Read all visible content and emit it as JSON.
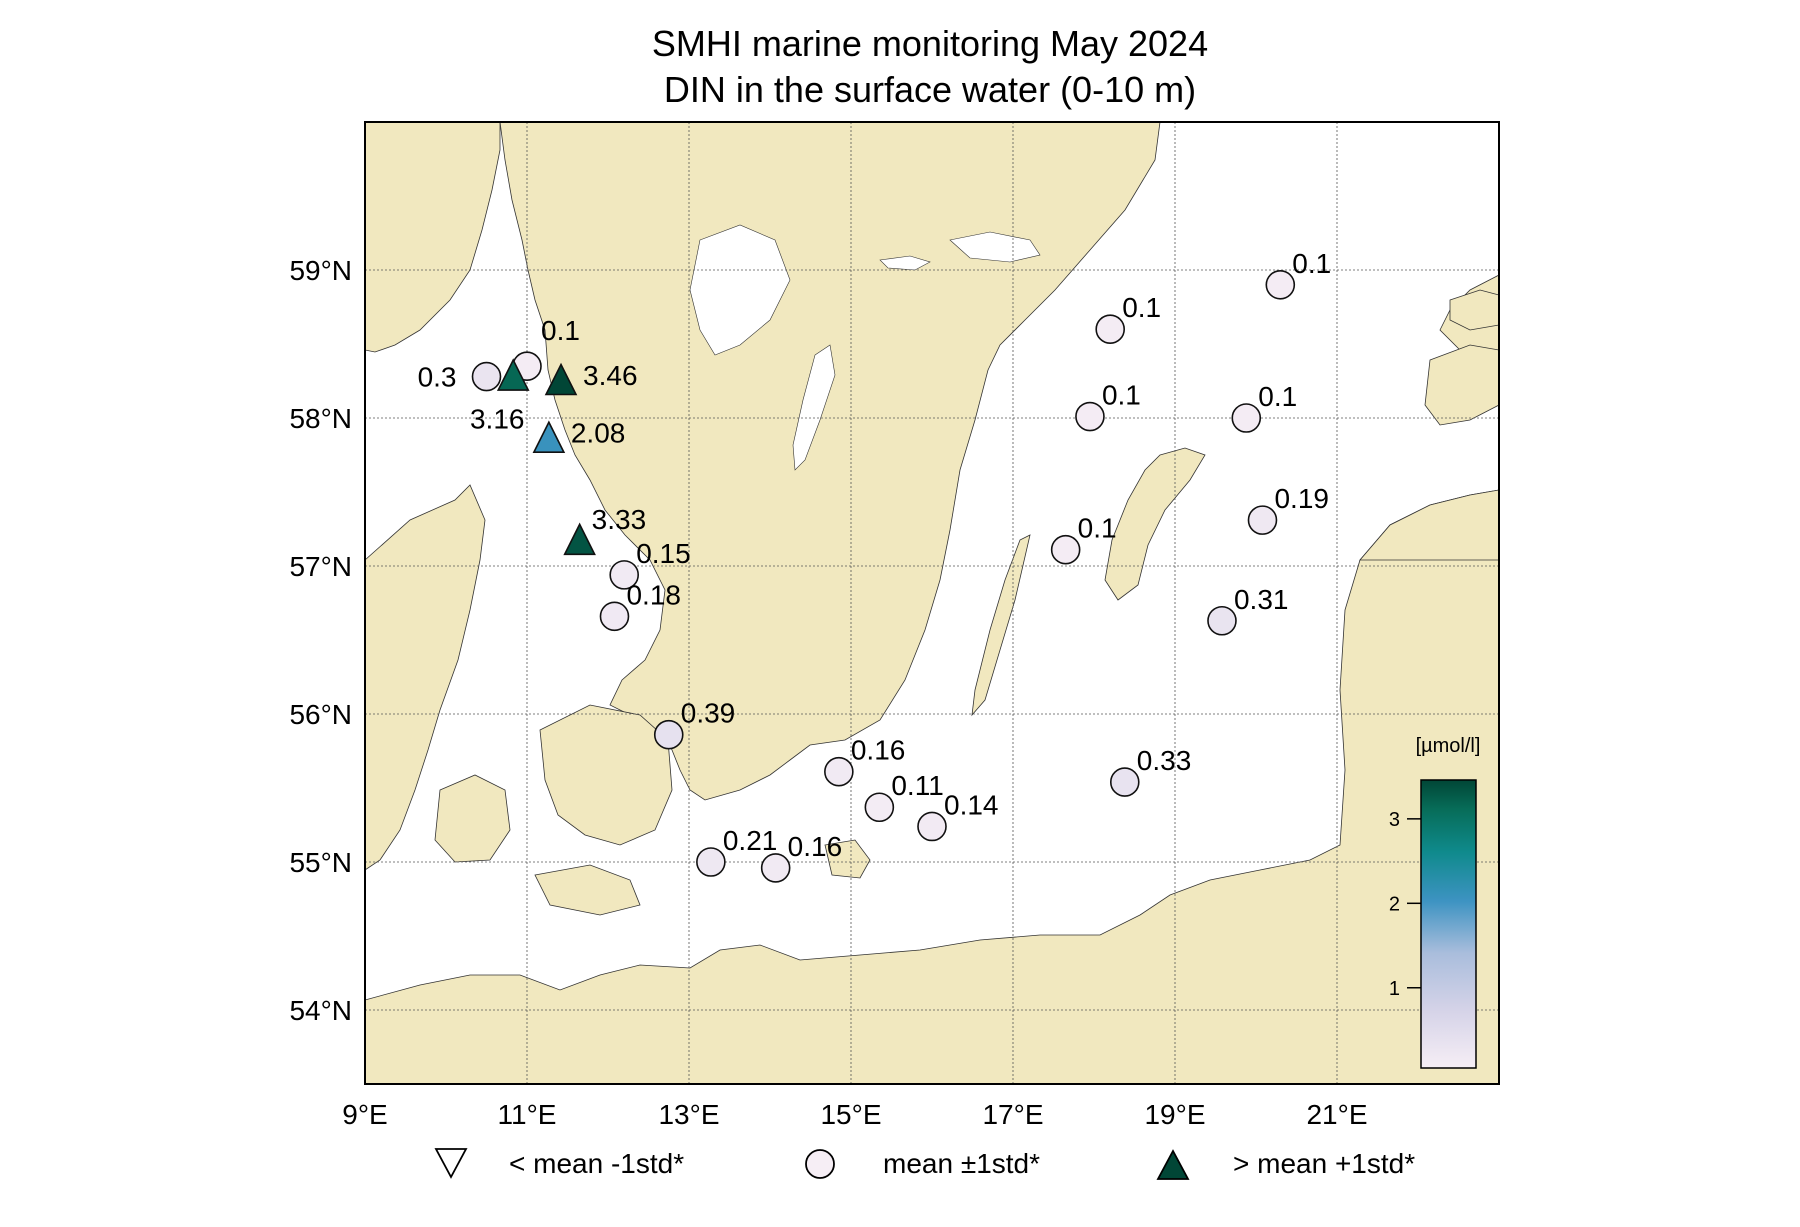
{
  "title": {
    "line1": "SMHI marine monitoring May 2024",
    "line2": "DIN in the surface water (0-10 m)"
  },
  "colors": {
    "land": "#f1e8bf",
    "sea": "#ffffff",
    "grid": "#555555",
    "marker_edge": "#111111",
    "colormap": [
      "#f6eef5",
      "#c8c9e0",
      "#86acd0",
      "#3a8fc0",
      "#128a8f",
      "#0b6e5e",
      "#014636"
    ]
  },
  "map": {
    "lon_range": [
      9,
      23
    ],
    "lat_range": [
      53.5,
      60.0
    ],
    "lon_ticks": [
      {
        "value": 9,
        "label": "9°E"
      },
      {
        "value": 11,
        "label": "11°E"
      },
      {
        "value": 13,
        "label": "13°E"
      },
      {
        "value": 15,
        "label": "15°E"
      },
      {
        "value": 17,
        "label": "17°E"
      },
      {
        "value": 19,
        "label": "19°E"
      },
      {
        "value": 21,
        "label": "21°E"
      }
    ],
    "lat_ticks": [
      {
        "value": 54,
        "label": "54°N"
      },
      {
        "value": 55,
        "label": "55°N"
      },
      {
        "value": 56,
        "label": "56°N"
      },
      {
        "value": 57,
        "label": "57°N"
      },
      {
        "value": 58,
        "label": "58°N"
      },
      {
        "value": 59,
        "label": "59°N"
      }
    ],
    "grid": true
  },
  "chart_data": {
    "type": "scatter",
    "title": "SMHI marine monitoring May 2024 / DIN in the surface water (0-10 m)",
    "xlabel": "",
    "ylabel": "",
    "xlim": [
      9,
      23
    ],
    "ylim": [
      53.5,
      60.0
    ],
    "colorbar": {
      "label": "[µmol/l]",
      "ticks": [
        1,
        2,
        3
      ],
      "range": [
        0.05,
        3.46
      ]
    },
    "points": [
      {
        "lon": 10.5,
        "lat": 58.28,
        "value": 0.3,
        "label": "0.3",
        "class": "mean",
        "label_pos": "left"
      },
      {
        "lon": 11.0,
        "lat": 58.35,
        "value": 0.1,
        "label": "0.1",
        "class": "mean",
        "label_pos": "top"
      },
      {
        "lon": 10.83,
        "lat": 58.28,
        "value": 3.16,
        "label": "3.16",
        "class": "above",
        "label_pos": "below"
      },
      {
        "lon": 11.42,
        "lat": 58.25,
        "value": 3.46,
        "label": "3.46",
        "class": "above",
        "label_pos": "right"
      },
      {
        "lon": 11.27,
        "lat": 57.86,
        "value": 2.08,
        "label": "2.08",
        "class": "above",
        "label_pos": "right"
      },
      {
        "lon": 11.65,
        "lat": 57.17,
        "value": 3.33,
        "label": "3.33",
        "class": "above",
        "label_pos": "top-right"
      },
      {
        "lon": 12.2,
        "lat": 56.94,
        "value": 0.15,
        "label": "0.15",
        "class": "mean",
        "label_pos": "top-right"
      },
      {
        "lon": 12.08,
        "lat": 56.66,
        "value": 0.18,
        "label": "0.18",
        "class": "mean",
        "label_pos": "top-right"
      },
      {
        "lon": 12.75,
        "lat": 55.86,
        "value": 0.39,
        "label": "0.39",
        "class": "mean",
        "label_pos": "top-right"
      },
      {
        "lon": 13.27,
        "lat": 55.0,
        "value": 0.21,
        "label": "0.21",
        "class": "mean",
        "label_pos": "top-right"
      },
      {
        "lon": 14.07,
        "lat": 54.96,
        "value": 0.16,
        "label": "0.16",
        "class": "mean",
        "label_pos": "top-right"
      },
      {
        "lon": 14.85,
        "lat": 55.61,
        "value": 0.16,
        "label": "0.16",
        "class": "mean",
        "label_pos": "top-right"
      },
      {
        "lon": 15.35,
        "lat": 55.37,
        "value": 0.11,
        "label": "0.11",
        "class": "mean",
        "label_pos": "top-right"
      },
      {
        "lon": 16.0,
        "lat": 55.24,
        "value": 0.14,
        "label": "0.14",
        "class": "mean",
        "label_pos": "top-right"
      },
      {
        "lon": 18.38,
        "lat": 55.54,
        "value": 0.33,
        "label": "0.33",
        "class": "mean",
        "label_pos": "top-right"
      },
      {
        "lon": 17.65,
        "lat": 57.11,
        "value": 0.1,
        "label": "0.1",
        "class": "mean",
        "label_pos": "top-right"
      },
      {
        "lon": 17.95,
        "lat": 58.01,
        "value": 0.1,
        "label": "0.1",
        "class": "mean",
        "label_pos": "top-right"
      },
      {
        "lon": 18.2,
        "lat": 58.6,
        "value": 0.1,
        "label": "0.1",
        "class": "mean",
        "label_pos": "top-right"
      },
      {
        "lon": 19.88,
        "lat": 58.0,
        "value": 0.1,
        "label": "0.1",
        "class": "mean",
        "label_pos": "top-right"
      },
      {
        "lon": 20.3,
        "lat": 58.9,
        "value": 0.1,
        "label": "0.1",
        "class": "mean",
        "label_pos": "top-right"
      },
      {
        "lon": 20.08,
        "lat": 57.31,
        "value": 0.19,
        "label": "0.19",
        "class": "mean",
        "label_pos": "top-right"
      },
      {
        "lon": 19.58,
        "lat": 56.63,
        "value": 0.31,
        "label": "0.31",
        "class": "mean",
        "label_pos": "top-right"
      }
    ]
  },
  "legend": [
    {
      "symbol": "triangle-down",
      "label": "< mean -1std*"
    },
    {
      "symbol": "circle",
      "label": "mean ±1std*"
    },
    {
      "symbol": "triangle-up",
      "label": "> mean +1std*"
    }
  ],
  "colorbar": {
    "unit": "[µmol/l]",
    "ticks": [
      {
        "value": 1,
        "label": "1"
      },
      {
        "value": 2,
        "label": "2"
      },
      {
        "value": 3,
        "label": "3"
      }
    ]
  }
}
